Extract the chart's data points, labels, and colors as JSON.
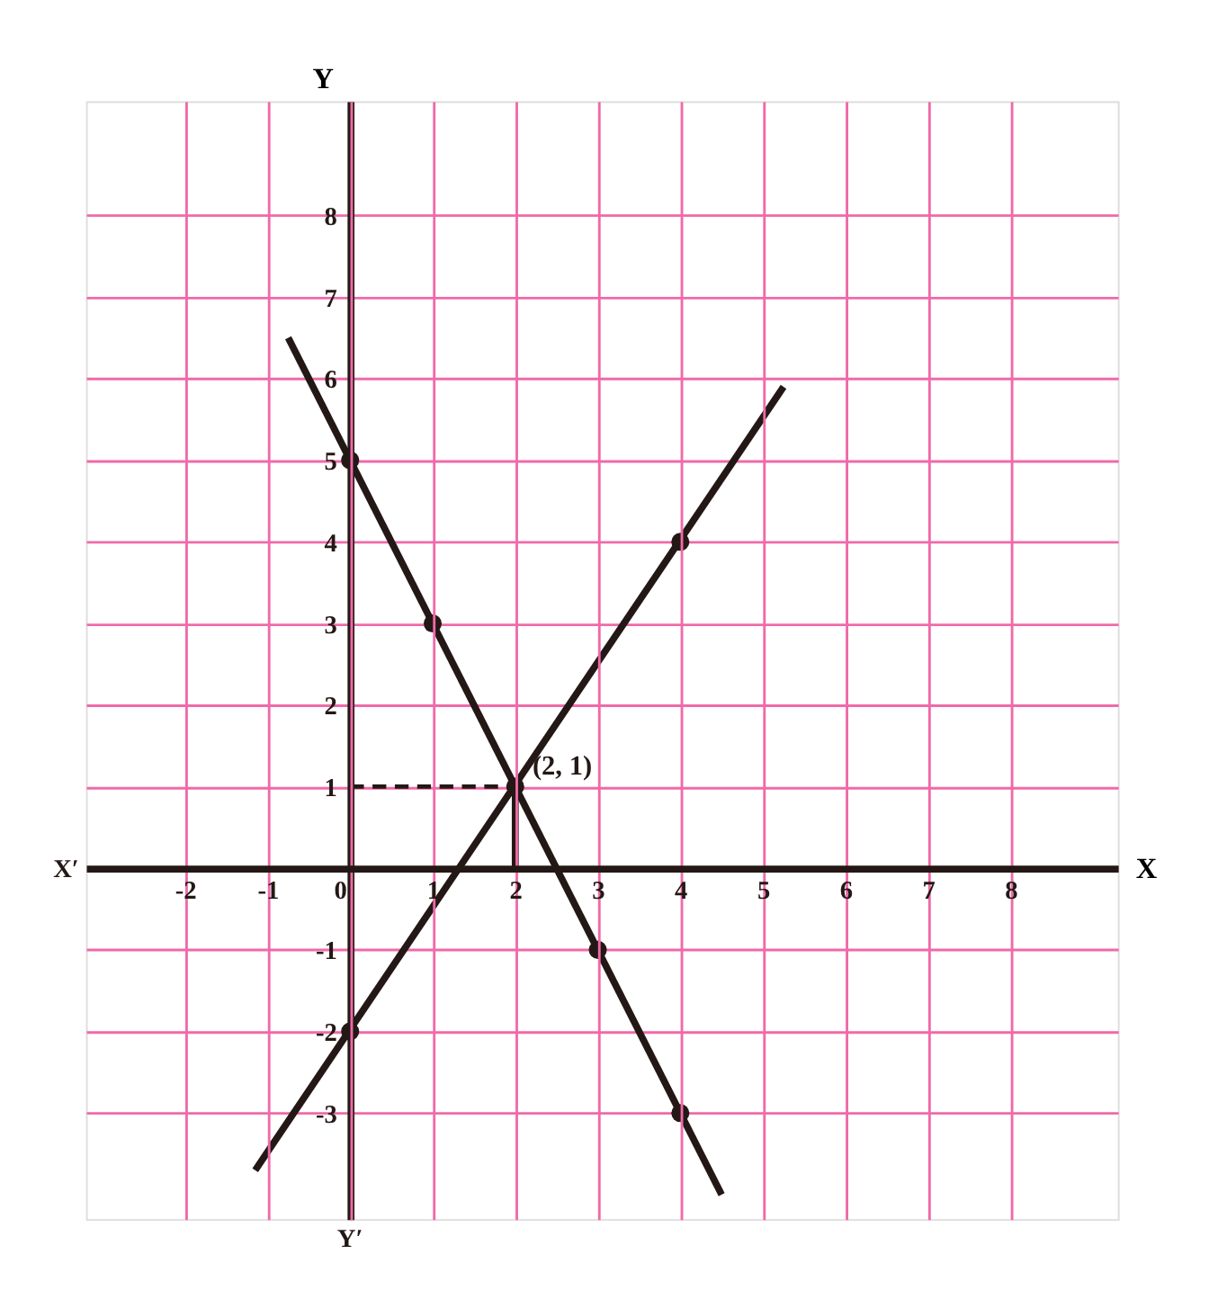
{
  "chart_data": {
    "type": "line",
    "xlabel": "X",
    "ylabel": "Y",
    "annotations": [
      "X′",
      "Y′",
      {
        "text": "(2, 1)",
        "x": 2,
        "y": 1
      }
    ],
    "series": [
      {
        "color": "#231815",
        "x": [
          -0.75,
          4.5
        ],
        "values": [
          6.5,
          -4
        ],
        "line_style": "solid"
      },
      {
        "color": "#231815",
        "x": [
          -1.15,
          5.25
        ],
        "values": [
          -3.7,
          5.9
        ],
        "line_style": "solid"
      },
      {
        "type": "scatter",
        "color": "#231815",
        "x": [
          0,
          1,
          2,
          3,
          4
        ],
        "values": [
          5,
          3,
          1,
          -1,
          -3
        ],
        "marker": "circle"
      },
      {
        "type": "scatter",
        "color": "#231815",
        "x": [
          0,
          4
        ],
        "values": [
          -2,
          4
        ],
        "marker": "circle"
      },
      {
        "color": "#231815",
        "x": [
          0,
          2
        ],
        "values": [
          1,
          1
        ],
        "line_style": "dashed"
      },
      {
        "color": "#231815",
        "x": [
          2,
          2
        ],
        "values": [
          0,
          1
        ],
        "line_style": "solid"
      }
    ],
    "xlim": [
      -3.2,
      9.3
    ],
    "ylim": [
      -4.3,
      9.4
    ],
    "xticks": [
      -2,
      -1,
      0,
      1,
      2,
      3,
      4,
      5,
      6,
      7,
      8
    ],
    "yticks": [
      -3,
      -2,
      -1,
      1,
      2,
      3,
      4,
      5,
      6,
      7,
      8
    ],
    "grid": true
  }
}
